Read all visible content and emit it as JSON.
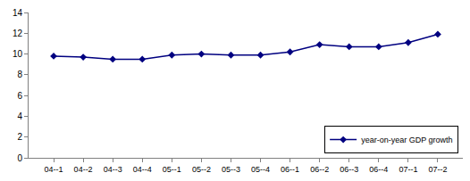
{
  "chart_data": {
    "type": "line",
    "categories": [
      "04--1",
      "04--2",
      "04--3",
      "04--4",
      "05--1",
      "05--2",
      "05--3",
      "05--4",
      "06--1",
      "06--2",
      "06--3",
      "06--4",
      "07--1",
      "07--2"
    ],
    "series": [
      {
        "name": "year-on-year GDP growth",
        "color": "#000080",
        "marker": "diamond",
        "values": [
          9.8,
          9.7,
          9.5,
          9.5,
          9.9,
          10.0,
          9.9,
          9.9,
          10.2,
          10.9,
          10.7,
          10.7,
          11.1,
          11.9
        ]
      }
    ],
    "ylim": [
      0,
      14
    ],
    "yticks": [
      0,
      2,
      4,
      6,
      8,
      10,
      12,
      14
    ],
    "grid": false,
    "legend": "lower right"
  }
}
